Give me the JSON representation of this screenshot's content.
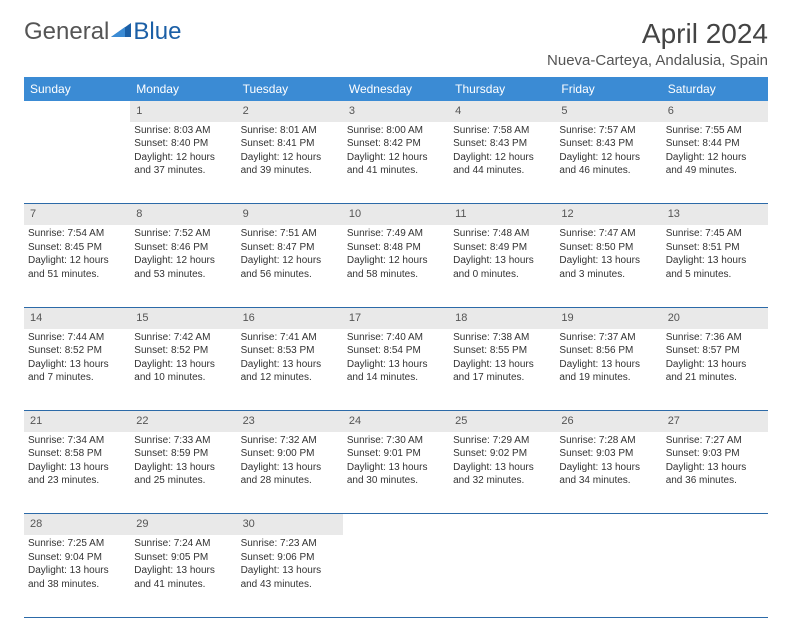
{
  "brand": {
    "part1": "General",
    "part2": "Blue"
  },
  "title": "April 2024",
  "location": "Nueva-Carteya, Andalusia, Spain",
  "colors": {
    "header_bg": "#3b8bd4",
    "header_text": "#ffffff",
    "daynum_bg": "#e9e9e9",
    "border": "#2c6aa8",
    "logo_accent": "#1b5fa6"
  },
  "weekdays": [
    "Sunday",
    "Monday",
    "Tuesday",
    "Wednesday",
    "Thursday",
    "Friday",
    "Saturday"
  ],
  "weeks": [
    {
      "nums": [
        "",
        "1",
        "2",
        "3",
        "4",
        "5",
        "6"
      ],
      "cells": [
        "",
        "Sunrise: 8:03 AM\nSunset: 8:40 PM\nDaylight: 12 hours and 37 minutes.",
        "Sunrise: 8:01 AM\nSunset: 8:41 PM\nDaylight: 12 hours and 39 minutes.",
        "Sunrise: 8:00 AM\nSunset: 8:42 PM\nDaylight: 12 hours and 41 minutes.",
        "Sunrise: 7:58 AM\nSunset: 8:43 PM\nDaylight: 12 hours and 44 minutes.",
        "Sunrise: 7:57 AM\nSunset: 8:43 PM\nDaylight: 12 hours and 46 minutes.",
        "Sunrise: 7:55 AM\nSunset: 8:44 PM\nDaylight: 12 hours and 49 minutes."
      ]
    },
    {
      "nums": [
        "7",
        "8",
        "9",
        "10",
        "11",
        "12",
        "13"
      ],
      "cells": [
        "Sunrise: 7:54 AM\nSunset: 8:45 PM\nDaylight: 12 hours and 51 minutes.",
        "Sunrise: 7:52 AM\nSunset: 8:46 PM\nDaylight: 12 hours and 53 minutes.",
        "Sunrise: 7:51 AM\nSunset: 8:47 PM\nDaylight: 12 hours and 56 minutes.",
        "Sunrise: 7:49 AM\nSunset: 8:48 PM\nDaylight: 12 hours and 58 minutes.",
        "Sunrise: 7:48 AM\nSunset: 8:49 PM\nDaylight: 13 hours and 0 minutes.",
        "Sunrise: 7:47 AM\nSunset: 8:50 PM\nDaylight: 13 hours and 3 minutes.",
        "Sunrise: 7:45 AM\nSunset: 8:51 PM\nDaylight: 13 hours and 5 minutes."
      ]
    },
    {
      "nums": [
        "14",
        "15",
        "16",
        "17",
        "18",
        "19",
        "20"
      ],
      "cells": [
        "Sunrise: 7:44 AM\nSunset: 8:52 PM\nDaylight: 13 hours and 7 minutes.",
        "Sunrise: 7:42 AM\nSunset: 8:52 PM\nDaylight: 13 hours and 10 minutes.",
        "Sunrise: 7:41 AM\nSunset: 8:53 PM\nDaylight: 13 hours and 12 minutes.",
        "Sunrise: 7:40 AM\nSunset: 8:54 PM\nDaylight: 13 hours and 14 minutes.",
        "Sunrise: 7:38 AM\nSunset: 8:55 PM\nDaylight: 13 hours and 17 minutes.",
        "Sunrise: 7:37 AM\nSunset: 8:56 PM\nDaylight: 13 hours and 19 minutes.",
        "Sunrise: 7:36 AM\nSunset: 8:57 PM\nDaylight: 13 hours and 21 minutes."
      ]
    },
    {
      "nums": [
        "21",
        "22",
        "23",
        "24",
        "25",
        "26",
        "27"
      ],
      "cells": [
        "Sunrise: 7:34 AM\nSunset: 8:58 PM\nDaylight: 13 hours and 23 minutes.",
        "Sunrise: 7:33 AM\nSunset: 8:59 PM\nDaylight: 13 hours and 25 minutes.",
        "Sunrise: 7:32 AM\nSunset: 9:00 PM\nDaylight: 13 hours and 28 minutes.",
        "Sunrise: 7:30 AM\nSunset: 9:01 PM\nDaylight: 13 hours and 30 minutes.",
        "Sunrise: 7:29 AM\nSunset: 9:02 PM\nDaylight: 13 hours and 32 minutes.",
        "Sunrise: 7:28 AM\nSunset: 9:03 PM\nDaylight: 13 hours and 34 minutes.",
        "Sunrise: 7:27 AM\nSunset: 9:03 PM\nDaylight: 13 hours and 36 minutes."
      ]
    },
    {
      "nums": [
        "28",
        "29",
        "30",
        "",
        "",
        "",
        ""
      ],
      "cells": [
        "Sunrise: 7:25 AM\nSunset: 9:04 PM\nDaylight: 13 hours and 38 minutes.",
        "Sunrise: 7:24 AM\nSunset: 9:05 PM\nDaylight: 13 hours and 41 minutes.",
        "Sunrise: 7:23 AM\nSunset: 9:06 PM\nDaylight: 13 hours and 43 minutes.",
        "",
        "",
        "",
        ""
      ]
    }
  ]
}
